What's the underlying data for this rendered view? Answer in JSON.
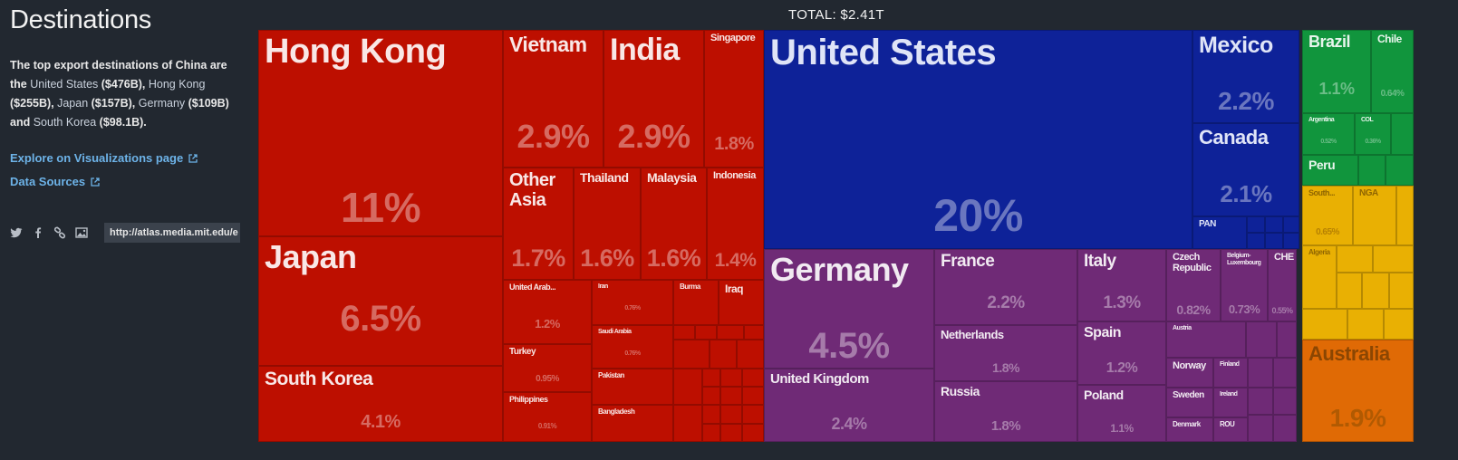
{
  "sidebar": {
    "title": "Destinations",
    "desc": {
      "intro": "The top export destinations of China are the ",
      "items": [
        {
          "name": "United States",
          "value": " ($476B), "
        },
        {
          "name": "Hong Kong",
          "value": " ($255B), "
        },
        {
          "name": "Japan",
          "value": " ($157B), "
        },
        {
          "name": "Germany",
          "value": " ($109B) and "
        },
        {
          "name": "South Korea",
          "value": " ($98.1B)."
        }
      ]
    },
    "explore_label": "Explore on Visualizations page",
    "sources_label": "Data Sources",
    "share_url": "http://atlas.media.mit.edu/e",
    "icons": [
      "twitter-icon",
      "facebook-icon",
      "link-icon",
      "image-icon",
      "external-link-icon"
    ]
  },
  "chart_data": {
    "type": "treemap",
    "total_label": "TOTAL: $2.41T",
    "colors": {
      "asia": "#bd0f00",
      "americas": "#0e2298",
      "europe": "#6f2a76",
      "south_america": "#11953d",
      "africa": "#e9b003",
      "oceania": "#e06a05"
    },
    "tiles": [
      {
        "name": "Hong Kong",
        "pct": "11%",
        "region": "asia"
      },
      {
        "name": "Japan",
        "pct": "6.5%",
        "region": "asia"
      },
      {
        "name": "South Korea",
        "pct": "4.1%",
        "region": "asia"
      },
      {
        "name": "Vietnam",
        "pct": "2.9%",
        "region": "asia"
      },
      {
        "name": "India",
        "pct": "2.9%",
        "region": "asia"
      },
      {
        "name": "Singapore",
        "pct": "1.8%",
        "region": "asia"
      },
      {
        "name": "Other Asia",
        "pct": "1.7%",
        "region": "asia"
      },
      {
        "name": "Thailand",
        "pct": "1.6%",
        "region": "asia"
      },
      {
        "name": "Malaysia",
        "pct": "1.6%",
        "region": "asia"
      },
      {
        "name": "Indonesia",
        "pct": "1.4%",
        "region": "asia"
      },
      {
        "name": "United Arab...",
        "pct": "1.2%",
        "region": "asia"
      },
      {
        "name": "Iran",
        "pct": "0.76%",
        "region": "asia"
      },
      {
        "name": "Burma",
        "pct": "",
        "region": "asia"
      },
      {
        "name": "Iraq",
        "pct": "",
        "region": "asia"
      },
      {
        "name": "Saudi Arabia",
        "pct": "0.76%",
        "region": "asia"
      },
      {
        "name": "Turkey",
        "pct": "0.95%",
        "region": "asia"
      },
      {
        "name": "Pakistan",
        "pct": "",
        "region": "asia"
      },
      {
        "name": "Philippines",
        "pct": "0.91%",
        "region": "asia"
      },
      {
        "name": "Bangladesh",
        "pct": "",
        "region": "asia"
      },
      {
        "name": "United States",
        "pct": "20%",
        "region": "americas"
      },
      {
        "name": "Mexico",
        "pct": "2.2%",
        "region": "americas"
      },
      {
        "name": "Canada",
        "pct": "2.1%",
        "region": "americas"
      },
      {
        "name": "PAN",
        "pct": "",
        "region": "americas"
      },
      {
        "name": "Germany",
        "pct": "4.5%",
        "region": "europe"
      },
      {
        "name": "United Kingdom",
        "pct": "2.4%",
        "region": "europe"
      },
      {
        "name": "France",
        "pct": "2.2%",
        "region": "europe"
      },
      {
        "name": "Netherlands",
        "pct": "1.8%",
        "region": "europe"
      },
      {
        "name": "Russia",
        "pct": "1.8%",
        "region": "europe"
      },
      {
        "name": "Italy",
        "pct": "1.3%",
        "region": "europe"
      },
      {
        "name": "Spain",
        "pct": "1.2%",
        "region": "europe"
      },
      {
        "name": "Poland",
        "pct": "1.1%",
        "region": "europe"
      },
      {
        "name": "Czech Republic",
        "pct": "0.82%",
        "region": "europe"
      },
      {
        "name": "Belgium-Luxembourg",
        "pct": "0.73%",
        "region": "europe"
      },
      {
        "name": "CHE",
        "pct": "0.55%",
        "region": "europe"
      },
      {
        "name": "Austria",
        "pct": "",
        "region": "europe"
      },
      {
        "name": "Norway",
        "pct": "",
        "region": "europe"
      },
      {
        "name": "Finland",
        "pct": "",
        "region": "europe"
      },
      {
        "name": "Sweden",
        "pct": "",
        "region": "europe"
      },
      {
        "name": "Ireland",
        "pct": "",
        "region": "europe"
      },
      {
        "name": "Denmark",
        "pct": "",
        "region": "europe"
      },
      {
        "name": "ROU",
        "pct": "",
        "region": "europe"
      },
      {
        "name": "Brazil",
        "pct": "1.1%",
        "region": "south_america"
      },
      {
        "name": "Chile",
        "pct": "0.64%",
        "region": "south_america"
      },
      {
        "name": "Argentina",
        "pct": "0.52%",
        "region": "south_america"
      },
      {
        "name": "COL",
        "pct": "0.36%",
        "region": "south_america"
      },
      {
        "name": "Peru",
        "pct": "",
        "region": "south_america"
      },
      {
        "name": "South...",
        "pct": "0.65%",
        "region": "africa"
      },
      {
        "name": "NGA",
        "pct": "",
        "region": "africa"
      },
      {
        "name": "Algeria",
        "pct": "",
        "region": "africa"
      },
      {
        "name": "Australia",
        "pct": "1.9%",
        "region": "oceania"
      }
    ]
  }
}
